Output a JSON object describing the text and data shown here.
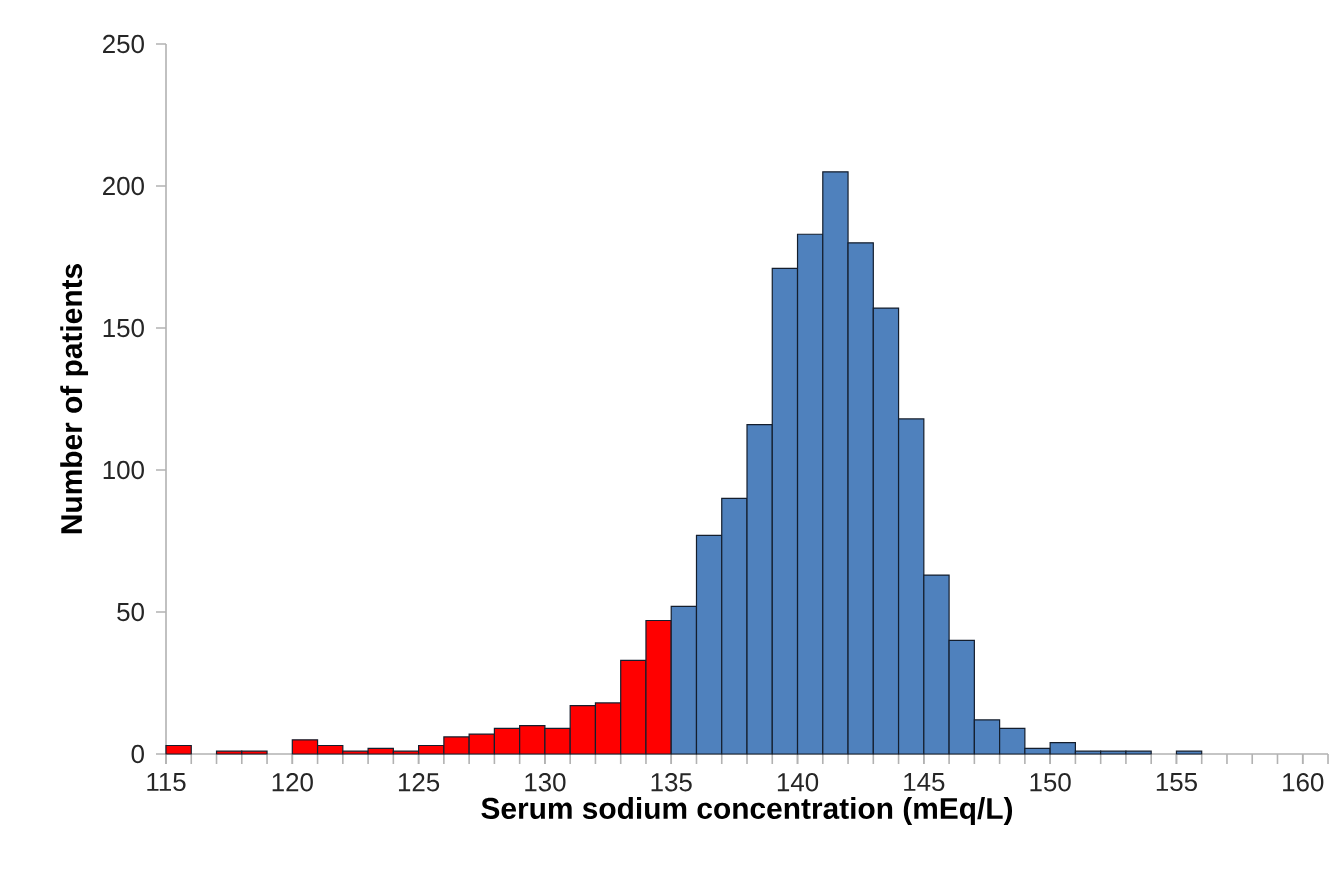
{
  "chart_data": {
    "type": "histogram",
    "xlabel": "Serum sodium concentration (mEq/L)",
    "ylabel": "Number of patients",
    "bins": [
      115,
      116,
      117,
      118,
      119,
      120,
      121,
      122,
      123,
      124,
      125,
      126,
      127,
      128,
      129,
      130,
      131,
      132,
      133,
      134,
      135,
      136,
      137,
      138,
      139,
      140,
      141,
      142,
      143,
      144,
      145,
      146,
      147,
      148,
      149,
      150,
      151,
      152,
      153,
      154,
      155,
      156,
      157,
      158,
      159,
      160,
      161
    ],
    "values": [
      3,
      0,
      1,
      1,
      0,
      5,
      3,
      1,
      2,
      1,
      3,
      6,
      7,
      9,
      10,
      9,
      17,
      18,
      33,
      47,
      52,
      77,
      90,
      116,
      171,
      183,
      205,
      180,
      157,
      118,
      63,
      40,
      12,
      9,
      2,
      4,
      1,
      1,
      1,
      0,
      1,
      0,
      0,
      0,
      0,
      0
    ],
    "colors": [
      "#ff0000",
      "#ff0000",
      "#ff0000",
      "#ff0000",
      "#ff0000",
      "#ff0000",
      "#ff0000",
      "#ff0000",
      "#ff0000",
      "#ff0000",
      "#ff0000",
      "#ff0000",
      "#ff0000",
      "#ff0000",
      "#ff0000",
      "#ff0000",
      "#ff0000",
      "#ff0000",
      "#ff0000",
      "#ff0000",
      "#4f81bd",
      "#4f81bd",
      "#4f81bd",
      "#4f81bd",
      "#4f81bd",
      "#4f81bd",
      "#4f81bd",
      "#4f81bd",
      "#4f81bd",
      "#4f81bd",
      "#4f81bd",
      "#4f81bd",
      "#4f81bd",
      "#4f81bd",
      "#4f81bd",
      "#4f81bd",
      "#4f81bd",
      "#4f81bd",
      "#4f81bd",
      "#4f81bd",
      "#4f81bd",
      "#4f81bd",
      "#4f81bd",
      "#4f81bd",
      "#4f81bd",
      "#4f81bd"
    ],
    "xlim": [
      115,
      161
    ],
    "ylim": [
      0,
      250
    ],
    "xticks": [
      115,
      120,
      125,
      130,
      135,
      140,
      145,
      150,
      155,
      160
    ],
    "yticks": [
      0,
      50,
      100,
      150,
      200,
      250
    ]
  }
}
